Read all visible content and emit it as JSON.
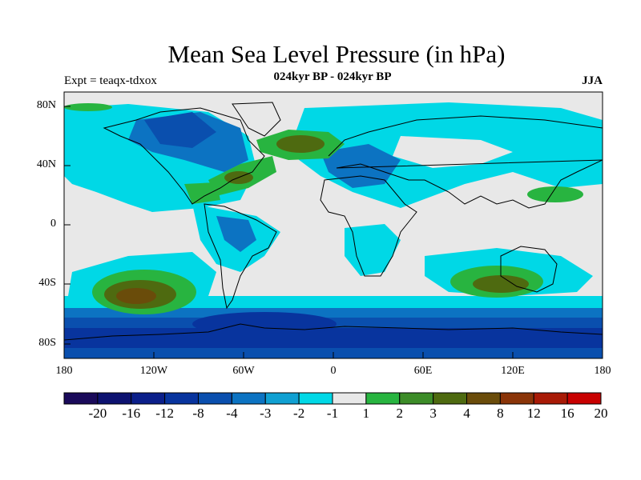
{
  "header": {
    "title": "Mean Sea Level Pressure (in hPa)",
    "subtitle": "024kyr BP - 024kyr BP",
    "left_label": "Expt = teaqx-tdxox",
    "right_label": "JJA"
  },
  "axes": {
    "y_ticks": [
      "80N",
      "40N",
      "0",
      "40S",
      "80S"
    ],
    "x_ticks": [
      "180",
      "120W",
      "60W",
      "0",
      "60E",
      "120E",
      "180"
    ]
  },
  "colorbar": {
    "labels": [
      "-20",
      "-16",
      "-12",
      "-8",
      "-4",
      "-3",
      "-2",
      "-1",
      "1",
      "2",
      "3",
      "4",
      "8",
      "12",
      "16",
      "20"
    ],
    "colors": [
      "#1a0a5a",
      "#0d1270",
      "#0b1f8a",
      "#08349e",
      "#0a4fae",
      "#0c73c2",
      "#10a0d2",
      "#00d8e6",
      "#e8e8e8",
      "#28b440",
      "#3c8c28",
      "#4e6a10",
      "#6a4c0a",
      "#8a3408",
      "#a81a06",
      "#c80000"
    ]
  },
  "map": {
    "land_fill_color": "#e8e8e8",
    "coast_color": "#000000"
  }
}
